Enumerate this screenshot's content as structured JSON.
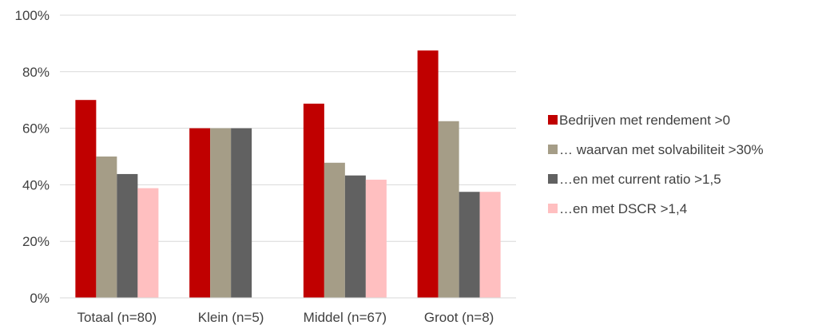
{
  "chart_data": {
    "type": "bar",
    "categories": [
      "Totaal (n=80)",
      "Klein (n=5)",
      "Middel (n=67)",
      "Groot (n=8)"
    ],
    "series": [
      {
        "name": "Bedrijven met rendement >0",
        "color": "#C00000",
        "values": [
          70,
          60,
          68.7,
          87.5
        ]
      },
      {
        "name": "… waarvan met solvabiliteit >30%",
        "color": "#A59D87",
        "values": [
          50,
          60,
          47.8,
          62.5
        ]
      },
      {
        "name": "…en met current ratio >1,5",
        "color": "#616161",
        "values": [
          43.8,
          60,
          43.3,
          37.5
        ]
      },
      {
        "name": "…en met DSCR >1,4",
        "color": "#FFBFC0",
        "values": [
          38.8,
          null,
          41.8,
          37.5
        ]
      }
    ],
    "y_ticks": [
      "0%",
      "20%",
      "40%",
      "60%",
      "80%",
      "100%"
    ],
    "ylim": [
      0,
      100
    ],
    "grid": true,
    "legend_position": "right"
  }
}
